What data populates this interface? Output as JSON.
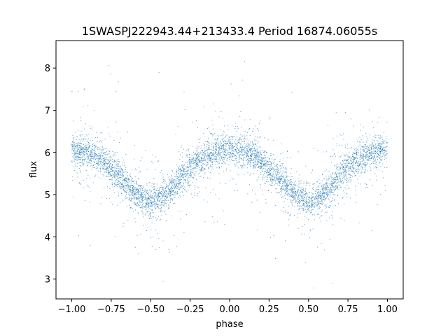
{
  "chart_data": {
    "type": "scatter",
    "title": "1SWASPJ222943.44+213433.4 Period 16874.06055s",
    "xlabel": "phase",
    "ylabel": "flux",
    "xlim": [
      -1.1,
      1.1
    ],
    "ylim": [
      2.53,
      8.65
    ],
    "xticks": [
      -1.0,
      -0.75,
      -0.5,
      -0.25,
      0.0,
      0.25,
      0.5,
      0.75,
      1.0
    ],
    "xtick_labels": [
      "−1.00",
      "−0.75",
      "−0.50",
      "−0.25",
      "0.00",
      "0.25",
      "0.50",
      "0.75",
      "1.00"
    ],
    "yticks": [
      3,
      4,
      5,
      6,
      7,
      8
    ],
    "ytick_labels": [
      "3",
      "4",
      "5",
      "6",
      "7",
      "8"
    ],
    "grid": false,
    "point_color": "#1f77b4",
    "series": [
      {
        "points": "dense folded light curve, sampled phase -1 to 1",
        "trend": {
          "x": [
            -1.0,
            -0.9,
            -0.8,
            -0.7,
            -0.6,
            -0.5,
            -0.4,
            -0.3,
            -0.2,
            -0.1,
            0.0,
            0.1,
            0.2,
            0.3,
            0.4,
            0.5,
            0.6,
            0.7,
            0.8,
            0.9,
            1.0
          ],
          "y": [
            6.05,
            6.0,
            5.8,
            5.45,
            5.05,
            4.78,
            5.0,
            5.45,
            5.8,
            6.0,
            6.08,
            6.0,
            5.8,
            5.45,
            5.05,
            4.78,
            5.0,
            5.45,
            5.8,
            6.0,
            6.05
          ]
        }
      }
    ]
  }
}
